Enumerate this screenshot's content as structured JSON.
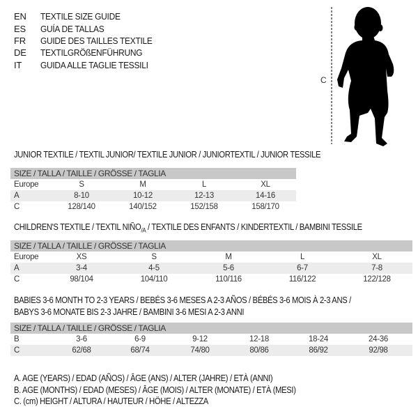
{
  "titles": [
    {
      "code": "EN",
      "text": "TEXTILE SIZE GUIDE"
    },
    {
      "code": "ES",
      "text": "GUÍA DE TALLAS"
    },
    {
      "code": "FR",
      "text": "GUIDE DES TAILLES TEXTILE"
    },
    {
      "code": "DE",
      "text": "TEXTILGRÖßENFÜHRUNG"
    },
    {
      "code": "IT",
      "text": "GUIDA ALLE TAGLIE TESSILI"
    }
  ],
  "figure": {
    "label": "C"
  },
  "junior": {
    "title": "JUNIOR TEXTILE / TEXTIL JUNIOR/ TEXTILE JUNIOR / JUNIORTEXTIL / JUNIOR TESSILE",
    "header": "SIZE / TALLA / TAILLE / GRÖSSE / TAGLIA",
    "rows": [
      {
        "label": "Europe",
        "values": [
          "S",
          "M",
          "L",
          "XL"
        ]
      },
      {
        "label": "A",
        "values": [
          "8-10",
          "10-12",
          "12-13",
          "14-16"
        ]
      },
      {
        "label": "C",
        "values": [
          "128/140",
          "140/152",
          "152/158",
          "158/170"
        ]
      }
    ]
  },
  "children": {
    "title_a": "CHILDREN'S TEXTILE / TEXTIL NIÑO",
    "title_sub": "/A",
    "title_b": " / TEXTILE DES ENFANTS / KINDERTEXTIL / BAMBINI TESSILE",
    "header": "SIZE / TALLA / TAILLE / GRÖSSE / TAGLIA",
    "rows": [
      {
        "label": "Europe",
        "values": [
          "XS",
          "S",
          "M",
          "L",
          "XL"
        ]
      },
      {
        "label": "A",
        "values": [
          "3-4",
          "4-5",
          "5-6",
          "6-7",
          "7-8"
        ]
      },
      {
        "label": "C",
        "values": [
          "98/104",
          "104/110",
          "110/116",
          "116/122",
          "122/128"
        ]
      }
    ]
  },
  "babies": {
    "title_line1": "BABIES 3-6 MONTH TO 2-3 YEARS / BEBÉS 3-6 MESES A 2-3 AÑOS / BÉBÉS 3-6 MOIS À 2-3 ANS /",
    "title_line2": "BABYS 3-6 MONATE BIS 2-3 JAHRE / BAMBINI 3-6 MESI A 2-3 ANNI",
    "header": "SIZE / TALLA / TAILLE / GRÖSSE / TAGLIA",
    "rows": [
      {
        "label": "B",
        "values": [
          "3-6",
          "6-9",
          "9-12",
          "12-18",
          "18-24",
          "24-36"
        ]
      },
      {
        "label": "C",
        "values": [
          "62/68",
          "68/74",
          "74/80",
          "80/86",
          "86/92",
          "92/98"
        ]
      }
    ]
  },
  "legend": [
    "A. AGE (YEARS) / EDAD (AÑOS) / ÂGE (ANS) / ALTER (JAHRE) / ETÀ (ANNI)",
    "B. AGE (MONTHS) / EDAD (MESES) / ÂGE (MOIS) / ALTER (MONATE) / ETÀ (MESI)",
    "C. (cm) HEIGHT / ALTURA / HAUTEUR / HÖHE / ALTEZZA"
  ],
  "colors": {
    "header_bg": "#c8c8c8",
    "row_shade": "#ececec",
    "text": "#1a1a1a"
  }
}
